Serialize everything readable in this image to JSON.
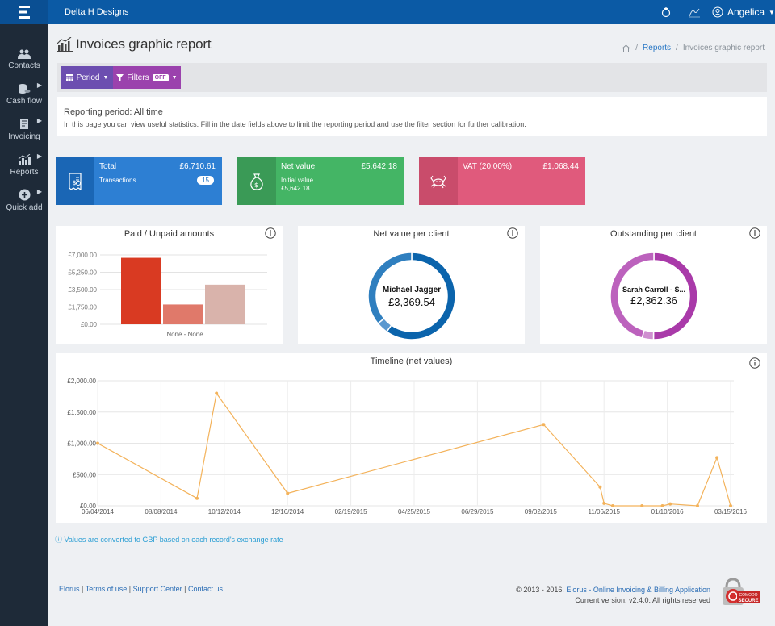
{
  "header": {
    "brand": "Delta H Designs",
    "user_name": "Angelica"
  },
  "sidebar": {
    "items": [
      {
        "label": "Contacts",
        "icon": "users-icon"
      },
      {
        "label": "Cash flow",
        "icon": "coins-icon"
      },
      {
        "label": "Invoicing",
        "icon": "invoice-icon"
      },
      {
        "label": "Reports",
        "icon": "bar-chart-icon"
      },
      {
        "label": "Quick add",
        "icon": "plus-circle-icon"
      }
    ]
  },
  "page": {
    "title": "Invoices graphic report",
    "breadcrumb": [
      "Reports",
      "Invoices graphic report"
    ]
  },
  "toolbar": {
    "period_label": "Period",
    "filters_label": "Filters",
    "filters_state": "OFF"
  },
  "period_info": {
    "title": "Reporting period: All time",
    "description": "In this page you can view useful statistics. Fill in the date fields above to limit the reporting period and use the filter section for further calibration."
  },
  "cards": {
    "total": {
      "label": "Total",
      "amount": "£6,710.61",
      "sub": "Transactions",
      "count": "15",
      "color": "#2d7fd3",
      "dark": "#1a66b5"
    },
    "net": {
      "label": "Net value",
      "amount": "£5,642.18",
      "sub1": "Initial value",
      "sub2": "£5,642.18",
      "color": "#44b565",
      "dark": "#3a9a56"
    },
    "vat": {
      "label": "VAT (20.00%)",
      "amount": "£1,068.44",
      "color": "#e05a7c",
      "dark": "#c94c6b"
    }
  },
  "paid_unpaid": {
    "title": "Paid / Unpaid amounts"
  },
  "net_per_client": {
    "title": "Net value per client",
    "center_name": "Michael Jagger",
    "center_value": "£3,369.54"
  },
  "outstanding_per_client": {
    "title": "Outstanding per client",
    "center_name": "Sarah Carroll - S...",
    "center_value": "£2,362.36"
  },
  "timeline": {
    "title": "Timeline (net values)"
  },
  "notice": "Values are converted to GBP based on each record's exchange rate",
  "footer": {
    "links": [
      "Elorus",
      "Terms of use",
      "Support Center",
      "Contact us"
    ],
    "copyright": "© 2013 - 2016.",
    "app_link": "Elorus - Online Invoicing & Billing Application",
    "version": "Current version: v2.4.0. All rights reserved",
    "seal_top": "COMODO",
    "seal_bottom": "SECURE"
  },
  "chart_data": [
    {
      "type": "bar",
      "title": "Paid / Unpaid amounts",
      "categories": [
        "None - None"
      ],
      "series": [
        {
          "values": [
            6710.61
          ],
          "color": "#d93a22"
        },
        {
          "values": [
            2000
          ],
          "color": "#e0796a"
        },
        {
          "values": [
            4000
          ],
          "color": "#d9b3ab"
        }
      ],
      "yticks": [
        "£7,000.00",
        "£5,250.00",
        "£3,500.00",
        "£1,750.00",
        "£0.00"
      ],
      "ylim": [
        0,
        7000
      ]
    },
    {
      "type": "pie",
      "title": "Net value per client",
      "slices": [
        {
          "label": "Michael Jagger",
          "value": 3369.54,
          "color": "#0b64ac"
        },
        {
          "value": 250,
          "color": "#5b98cf"
        },
        {
          "value": 2022.64,
          "color": "#2f7fbf"
        }
      ]
    },
    {
      "type": "pie",
      "title": "Outstanding per client",
      "slices": [
        {
          "label": "Sarah Carroll - S...",
          "value": 2362.36,
          "color": "#a93aa9"
        },
        {
          "value": 200,
          "color": "#cf8fd0"
        },
        {
          "value": 2148.25,
          "color": "#bc62bd"
        }
      ]
    },
    {
      "type": "line",
      "title": "Timeline (net values)",
      "color": "#f3b25a",
      "xticks": [
        "06/04/2014",
        "08/08/2014",
        "10/12/2014",
        "12/16/2014",
        "02/19/2015",
        "04/25/2015",
        "06/29/2015",
        "09/02/2015",
        "11/06/2015",
        "01/10/2016",
        "03/15/2016"
      ],
      "yticks": [
        "£2,000.00",
        "£1,500.00",
        "£1,000.00",
        "£500.00",
        "£0.00"
      ],
      "ylim": [
        0,
        2000
      ],
      "x": [
        "2014-06-04",
        "2014-09-14",
        "2014-10-04",
        "2014-12-16",
        "2015-09-05",
        "2015-11-02",
        "2015-11-06",
        "2015-11-15",
        "2015-12-15",
        "2016-01-05",
        "2016-01-13",
        "2016-02-10",
        "2016-03-01",
        "2016-03-15"
      ],
      "y": [
        1000,
        120,
        1800,
        200,
        1300,
        300,
        40,
        0,
        0,
        0,
        30,
        0,
        770,
        0
      ]
    }
  ]
}
